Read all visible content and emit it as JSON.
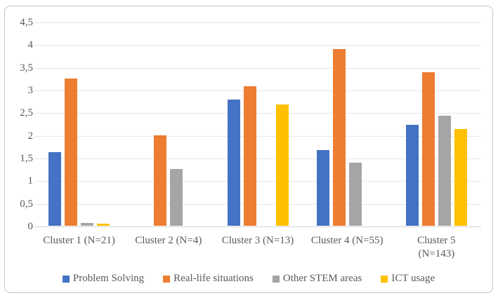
{
  "chart_data": {
    "type": "bar",
    "title": "",
    "xlabel": "",
    "ylabel": "",
    "categories": [
      "Cluster 1 (N=21)",
      "Cluster 2 (N=4)",
      "Cluster 3 (N=13)",
      "Cluster 4 (N=55)",
      "Cluster 5\n(N=143)"
    ],
    "series": [
      {
        "name": "Problem Solving",
        "color": "#4472C4",
        "values": [
          1.63,
          0,
          2.78,
          1.67,
          2.22
        ]
      },
      {
        "name": "Real-life situations",
        "color": "#ED7D31",
        "values": [
          3.25,
          2.0,
          3.08,
          3.9,
          3.38
        ]
      },
      {
        "name": "Other STEM areas",
        "color": "#A5A5A5",
        "values": [
          0.06,
          1.26,
          0,
          1.39,
          2.43
        ]
      },
      {
        "name": "ICT usage",
        "color": "#FFC000",
        "values": [
          0.05,
          0,
          2.68,
          0,
          2.13
        ]
      }
    ],
    "y_ticks": [
      "0",
      "0,5",
      "1",
      "1,5",
      "2",
      "2,5",
      "3",
      "3,5",
      "4",
      "4,5"
    ],
    "ylim": [
      0,
      4.5
    ],
    "y_tick_step": 0.5,
    "decimal_separator": ",",
    "grid": true,
    "legend_position": "bottom"
  },
  "frame": {
    "border_color": "#C6C6C6",
    "background": "#FFFFFF",
    "gridline_color": "#E7E7E7",
    "axis_color": "#D6D6D6",
    "text_color": "#595959"
  }
}
